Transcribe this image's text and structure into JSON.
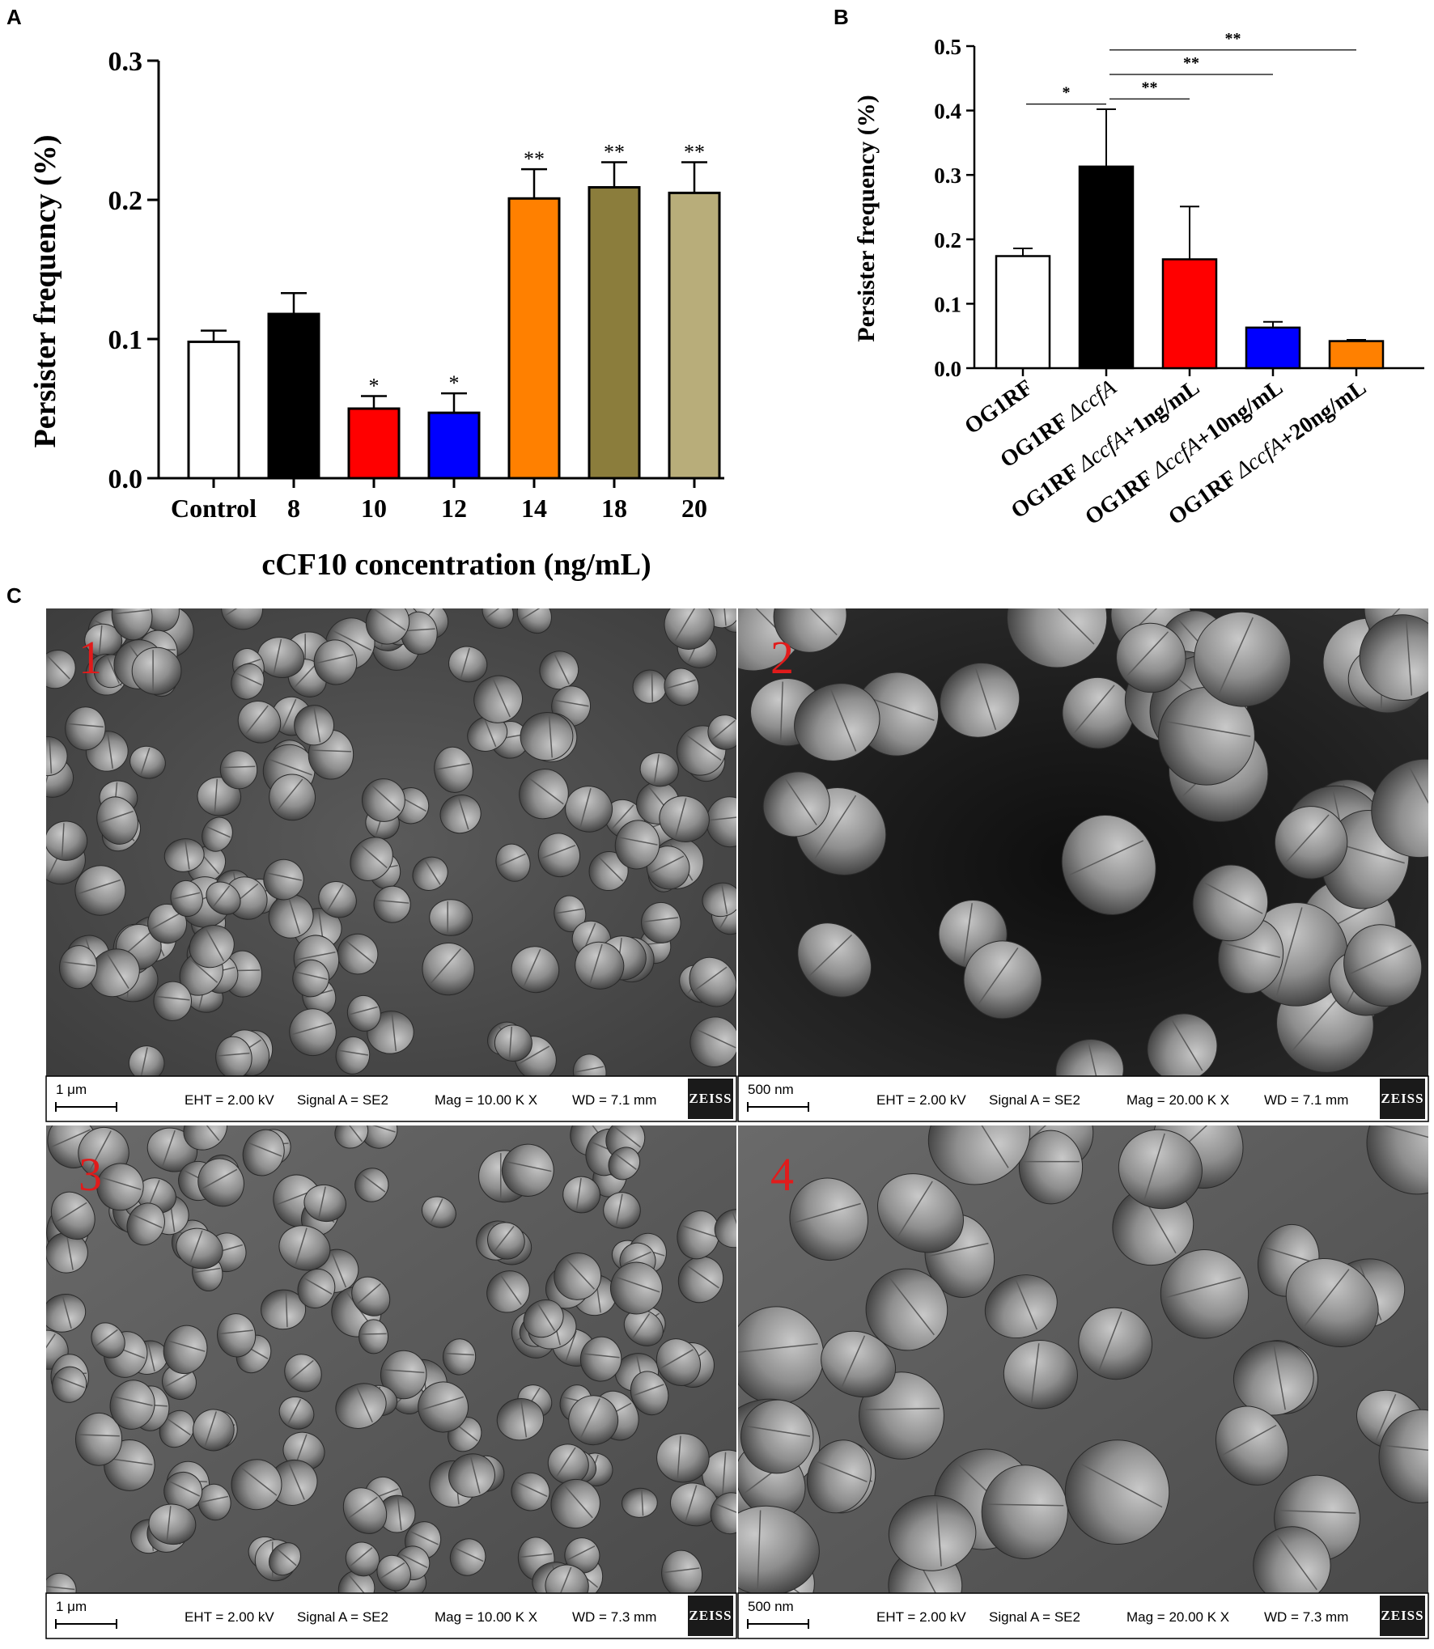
{
  "panels": {
    "a_letter": "A",
    "b_letter": "B",
    "c_letter": "C"
  },
  "colors": {
    "white": "#ffffff",
    "black": "#000000",
    "red": "#ff0000",
    "blue": "#0000ff",
    "orange": "#ff8000",
    "olive": "#8b7d3c",
    "khaki": "#b8ad7a"
  },
  "chart_data": [
    {
      "type": "bar",
      "ylabel": "Persister frequency (%)",
      "xlabel": "cCF10 concentration (ng/mL)",
      "categories": [
        "Control",
        "8",
        "10",
        "12",
        "14",
        "18",
        "20"
      ],
      "values": [
        0.098,
        0.118,
        0.05,
        0.047,
        0.201,
        0.209,
        0.205
      ],
      "errors": [
        0.008,
        0.015,
        0.009,
        0.014,
        0.021,
        0.018,
        0.022
      ],
      "significance": [
        "",
        "",
        "*",
        "*",
        "**",
        "**",
        "**"
      ],
      "bar_colors": [
        "#ffffff",
        "#000000",
        "#ff0000",
        "#0000ff",
        "#ff8000",
        "#8b7d3c",
        "#b8ad7a"
      ],
      "ylim": [
        0,
        0.3
      ],
      "yticks": [
        "0.0",
        "0.1",
        "0.2",
        "0.3"
      ],
      "ytick_values": [
        0,
        0.1,
        0.2,
        0.3
      ],
      "grid": false
    },
    {
      "type": "bar",
      "ylabel": "Persister frequency (%)",
      "xlabel": "",
      "categories": [
        "OG1RF",
        "OG1RF ΔccfA",
        "OG1RF ΔccfA+1ng/mL",
        "OG1RF ΔccfA+10ng/mL",
        "OG1RF ΔccfA+20ng/mL"
      ],
      "category_parts": [
        {
          "pre": "OG1RF",
          "ital": "",
          "post": ""
        },
        {
          "pre": "OG1RF ",
          "ital": "ΔccfA",
          "post": ""
        },
        {
          "pre": "OG1RF ",
          "ital": "ΔccfA",
          "post": "+1ng/mL"
        },
        {
          "pre": "OG1RF ",
          "ital": "ΔccfA",
          "post": "+10ng/mL"
        },
        {
          "pre": "OG1RF ",
          "ital": "ΔccfA",
          "post": "+20ng/mL"
        }
      ],
      "values": [
        0.174,
        0.313,
        0.169,
        0.063,
        0.042
      ],
      "errors": [
        0.012,
        0.089,
        0.082,
        0.009,
        0.002
      ],
      "bar_colors": [
        "#ffffff",
        "#000000",
        "#ff0000",
        "#0000ff",
        "#ff8000"
      ],
      "ylim": [
        0,
        0.5
      ],
      "yticks": [
        "0.0",
        "0.1",
        "0.2",
        "0.3",
        "0.4",
        "0.5"
      ],
      "ytick_values": [
        0,
        0.1,
        0.2,
        0.3,
        0.4,
        0.5
      ],
      "comparisons": [
        {
          "from": 0,
          "to": 1,
          "label": "*",
          "y": 0.41
        },
        {
          "from": 1,
          "to": 2,
          "label": "**",
          "y": 0.418
        },
        {
          "from": 1,
          "to": 3,
          "label": "**",
          "y": 0.456
        },
        {
          "from": 1,
          "to": 4,
          "label": "**",
          "y": 0.494
        }
      ],
      "grid": false
    }
  ],
  "micrographs": [
    {
      "label": "1",
      "scale": "1 μm",
      "eht": "EHT =  2.00 kV",
      "signal": "Signal A = SE2",
      "mag": "Mag =  10.00 K X",
      "wd": "WD =  7.1 mm",
      "brand": "ZEISS"
    },
    {
      "label": "2",
      "scale": "500 nm",
      "eht": "EHT =  2.00 kV",
      "signal": "Signal A = SE2",
      "mag": "Mag =   20.00 K X",
      "wd": "WD =  7.1 mm",
      "brand": "ZEISS"
    },
    {
      "label": "3",
      "scale": "1 μm",
      "eht": "EHT =  2.00 kV",
      "signal": "Signal A = SE2",
      "mag": "Mag =  10.00 K X",
      "wd": "WD =  7.3 mm",
      "brand": "ZEISS"
    },
    {
      "label": "4",
      "scale": "500 nm",
      "eht": "EHT =  2.00 kV",
      "signal": "Signal A = SE2",
      "mag": "Mag =   20.00 K X",
      "wd": "WD =  7.3 mm",
      "brand": "ZEISS"
    }
  ]
}
